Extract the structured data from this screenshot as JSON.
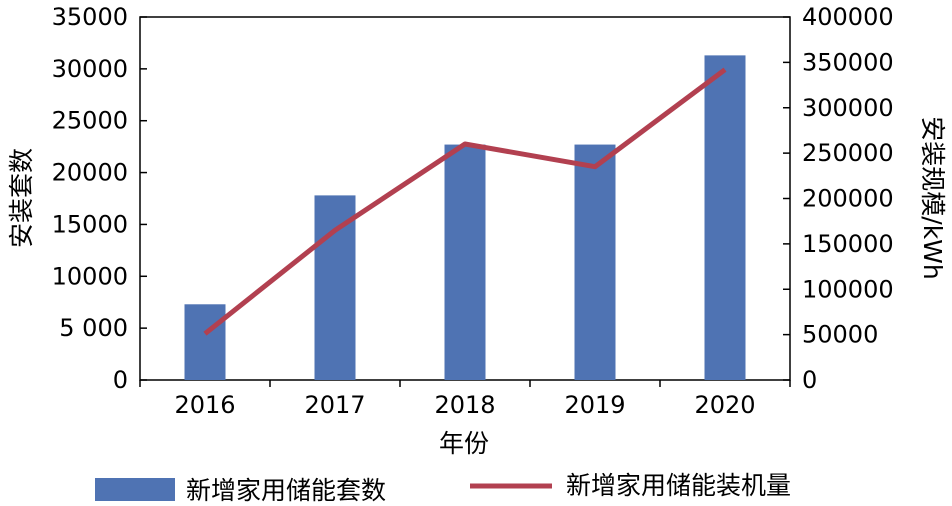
{
  "chart_data": {
    "type": "bar",
    "categories": [
      "2016",
      "2017",
      "2018",
      "2019",
      "2020"
    ],
    "series": [
      {
        "name": "新增家用储能套数",
        "type": "bar",
        "axis": "left",
        "values": [
          7300,
          17800,
          22700,
          22700,
          31300
        ]
      },
      {
        "name": "新增家用储能装机量",
        "type": "line",
        "axis": "right",
        "values": [
          51000,
          165000,
          260000,
          235000,
          342000
        ]
      }
    ],
    "xlabel": "年份",
    "ylabel_left": "安装套数",
    "ylabel_right": "安装规模/kWh",
    "ylim_left": [
      0,
      35000
    ],
    "ylim_right": [
      0,
      400000
    ],
    "yticks_left": [
      "0",
      "5 000",
      "10000",
      "15000",
      "20000",
      "25000",
      "30000",
      "35000"
    ],
    "yticks_right": [
      "0",
      "50000",
      "100000",
      "150000",
      "200000",
      "250000",
      "300000",
      "350000",
      "400000"
    ],
    "grid": false,
    "legend_position": "bottom",
    "colors": {
      "bar": "#4f73b3",
      "line": "#b24050"
    }
  }
}
